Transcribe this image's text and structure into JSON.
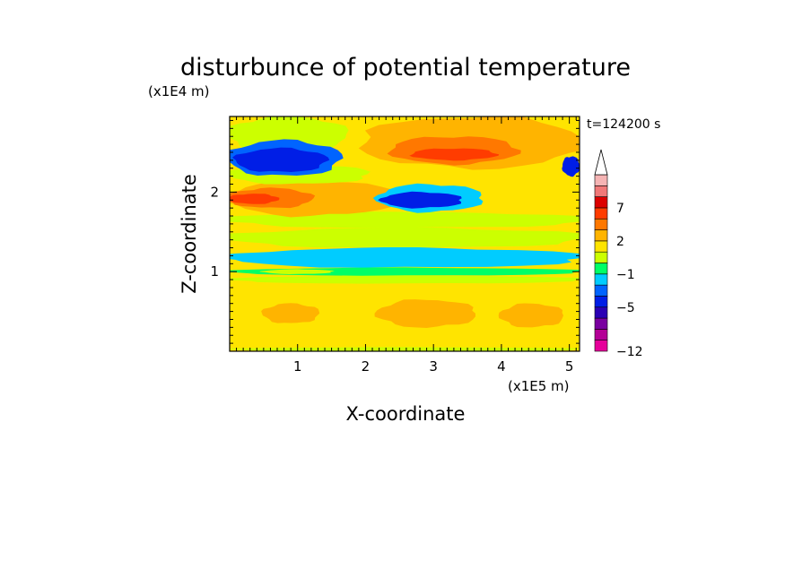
{
  "chart_data": {
    "type": "heatmap",
    "title": "disturbunce of potential temperature",
    "xlabel": "X-coordinate",
    "ylabel": "Z-coordinate",
    "x_unit": "(x1E5 m)",
    "y_unit": "(x1E4 m)",
    "time_label": "t=124200 s",
    "xlim": [
      0,
      5.15
    ],
    "ylim": [
      0,
      2.95
    ],
    "x_ticks": [
      {
        "value": 1,
        "label": "1"
      },
      {
        "value": 2,
        "label": "2"
      },
      {
        "value": 3,
        "label": "3"
      },
      {
        "value": 4,
        "label": "4"
      },
      {
        "value": 5,
        "label": "5"
      }
    ],
    "y_ticks": [
      {
        "value": 1,
        "label": "1"
      },
      {
        "value": 2,
        "label": "2"
      }
    ],
    "colorbar": {
      "colors": [
        "#e6009a",
        "#b40096",
        "#7a00a0",
        "#2a00b4",
        "#001ee6",
        "#0064ff",
        "#00ccff",
        "#00ff66",
        "#ccff00",
        "#ffe400",
        "#ffb400",
        "#ff7800",
        "#ff3c00",
        "#dc0000",
        "#f07878",
        "#f5b4b4"
      ],
      "labels": [
        {
          "value": -12,
          "label": "-12"
        },
        {
          "value": -5,
          "label": "-5"
        },
        {
          "value": -1,
          "label": "-1"
        },
        {
          "value": 2,
          "label": "2"
        },
        {
          "value": 7,
          "label": "7"
        }
      ],
      "label_levels": [
        0,
        4,
        7,
        10,
        13
      ]
    },
    "field": {
      "background": 1.0,
      "features": [
        {
          "x": [
            0,
            5.15
          ],
          "y": [
            0,
            0.85
          ],
          "value": 1.5
        },
        {
          "x": [
            0,
            5.15
          ],
          "y": [
            0,
            0.05
          ],
          "value": 0.0
        },
        {
          "x": [
            2.2,
            3.6
          ],
          "y": [
            0.3,
            0.65
          ],
          "value": 2.5
        },
        {
          "x": [
            4.0,
            4.9
          ],
          "y": [
            0.3,
            0.6
          ],
          "value": 2.5
        },
        {
          "x": [
            0.5,
            1.3
          ],
          "y": [
            0.35,
            0.6
          ],
          "value": 2.5
        },
        {
          "x": [
            0,
            5.15
          ],
          "y": [
            0.85,
            0.95
          ],
          "value": 0.0
        },
        {
          "x": [
            0,
            5.15
          ],
          "y": [
            0.95,
            1.05
          ],
          "value": -1.0
        },
        {
          "x": [
            0.5,
            1.5
          ],
          "y": [
            0.97,
            1.03
          ],
          "value": 0.0
        },
        {
          "x": [
            0,
            5.15
          ],
          "y": [
            1.05,
            1.3
          ],
          "value": -2.0
        },
        {
          "x": [
            0,
            5.15
          ],
          "y": [
            1.3,
            1.55
          ],
          "value": 0.0
        },
        {
          "x": [
            0,
            5.15
          ],
          "y": [
            1.55,
            1.75
          ],
          "value": 0.8
        },
        {
          "x": [
            0,
            2.4
          ],
          "y": [
            1.7,
            2.15
          ],
          "value": 2.2
        },
        {
          "x": [
            0,
            1.2
          ],
          "y": [
            1.8,
            2.05
          ],
          "value": 3.5
        },
        {
          "x": [
            0,
            0.7
          ],
          "y": [
            1.85,
            1.98
          ],
          "value": 5.5
        },
        {
          "x": [
            0,
            2.0
          ],
          "y": [
            2.1,
            2.35
          ],
          "value": 0.0
        },
        {
          "x": [
            2.0,
            5.15
          ],
          "y": [
            2.3,
            2.95
          ],
          "value": 2.2
        },
        {
          "x": [
            2.4,
            4.2
          ],
          "y": [
            2.35,
            2.7
          ],
          "value": 3.5
        },
        {
          "x": [
            2.7,
            3.9
          ],
          "y": [
            2.4,
            2.55
          ],
          "value": 5.0
        },
        {
          "x": [
            0,
            1.7
          ],
          "y": [
            2.5,
            2.95
          ],
          "value": 0.0
        },
        {
          "x": [
            2.2,
            3.7
          ],
          "y": [
            1.75,
            2.1
          ],
          "value": -3.0
        },
        {
          "x": [
            2.25,
            3.4
          ],
          "y": [
            1.8,
            2.0
          ],
          "value": -6.0
        },
        {
          "x": [
            0,
            1.6
          ],
          "y": [
            2.2,
            2.65
          ],
          "value": -3.5
        },
        {
          "x": [
            0.1,
            1.4
          ],
          "y": [
            2.25,
            2.55
          ],
          "value": -6.0
        },
        {
          "x": [
            4.9,
            5.15
          ],
          "y": [
            2.2,
            2.45
          ],
          "value": -5.0
        }
      ]
    }
  }
}
